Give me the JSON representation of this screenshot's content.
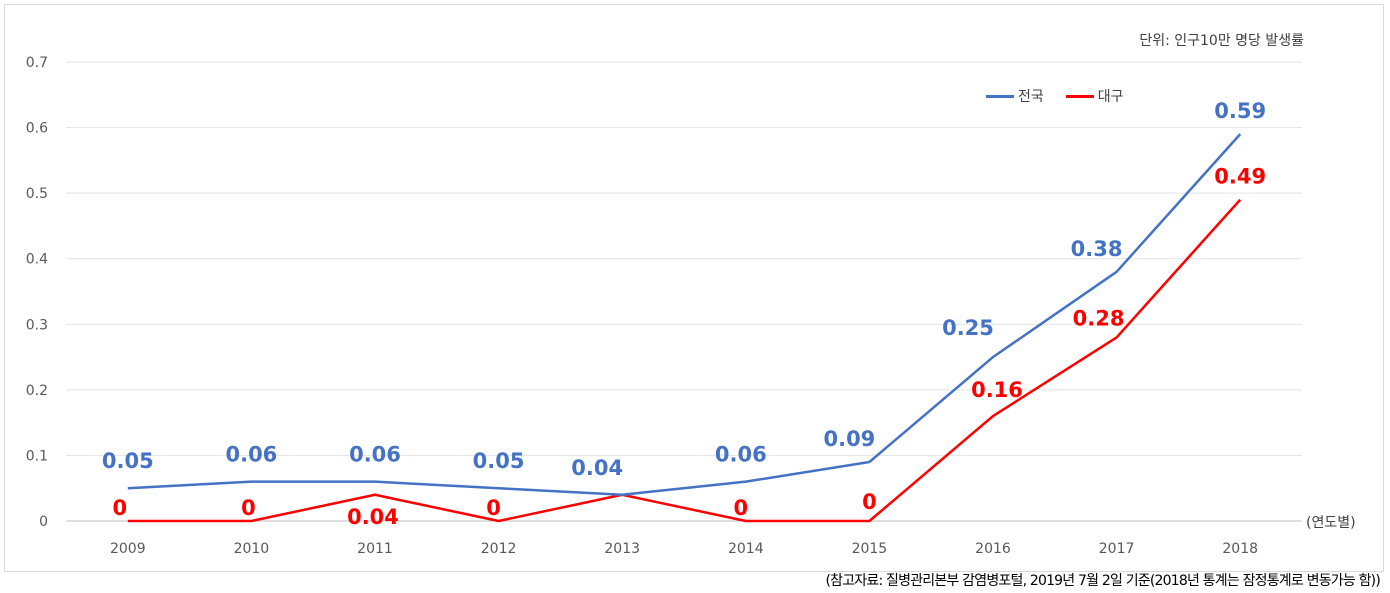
{
  "unit_label": "단위: 인구10만 명당 발생률",
  "x_unit_label": "(연도별)",
  "source_note": "(참고자료: 질병관리본부 감염병포털, 2019년 7월 2일 기준(2018년 통계는 잠정통계로 변동가능 함))",
  "chart_data": {
    "type": "line",
    "x": [
      "2009",
      "2010",
      "2011",
      "2012",
      "2013",
      "2014",
      "2015",
      "2016",
      "2017",
      "2018"
    ],
    "ylim": [
      0,
      0.7
    ],
    "yticks": [
      "0",
      "0.1",
      "0.2",
      "0.3",
      "0.4",
      "0.5",
      "0.6",
      "0.7"
    ],
    "grid": true,
    "legend_position": "top-right",
    "series": [
      {
        "name": "전국",
        "color": "#4472c4",
        "values": [
          0.05,
          0.06,
          0.06,
          0.05,
          0.04,
          0.06,
          0.09,
          0.25,
          0.38,
          0.59
        ],
        "labels": [
          "0.05",
          "0.06",
          "0.06",
          "0.05",
          "0.04",
          "0.06",
          "0.09",
          "0.25",
          "0.38",
          "0.59"
        ]
      },
      {
        "name": "대구",
        "color": "#ff0000",
        "values": [
          0,
          0,
          0.04,
          0,
          0.04,
          0,
          0,
          0.16,
          0.28,
          0.49
        ],
        "labels": [
          "0",
          "0",
          "0.04",
          "0",
          "",
          "0",
          "0",
          "0.16",
          "0.28",
          "0.49"
        ]
      }
    ]
  }
}
